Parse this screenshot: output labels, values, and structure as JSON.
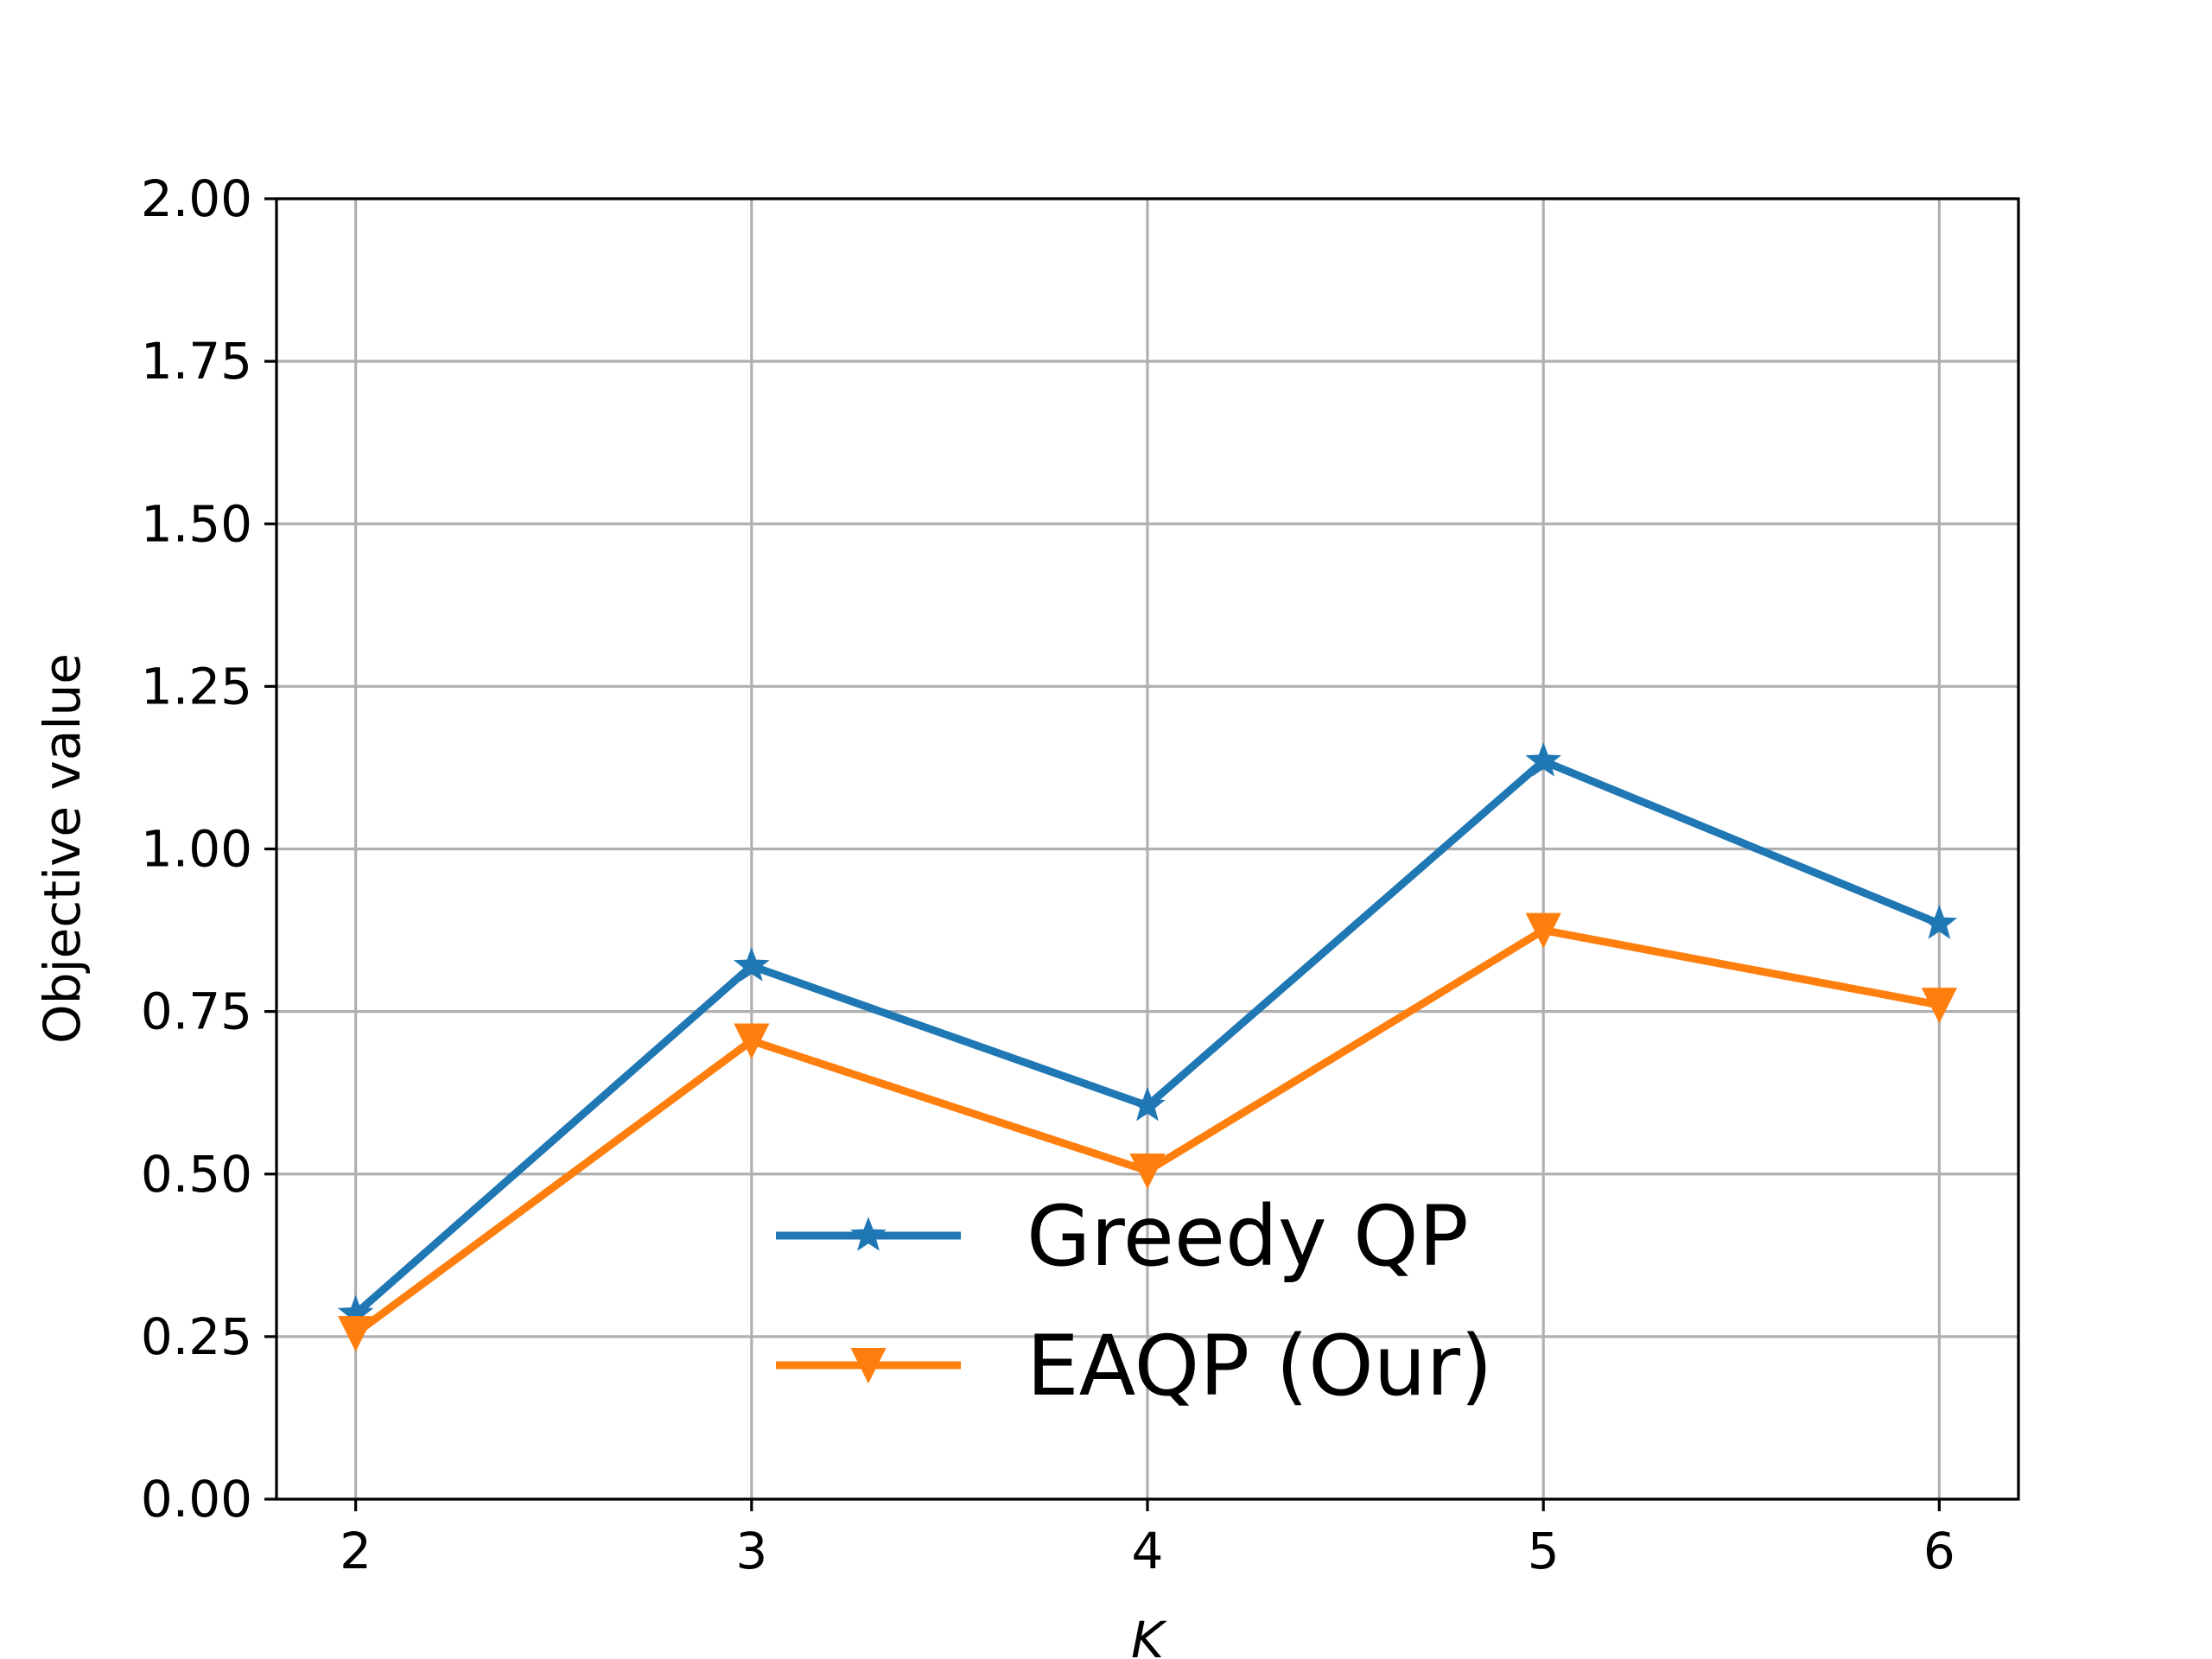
{
  "chart_data": {
    "type": "line",
    "title": "",
    "xlabel": "K",
    "ylabel": "Objective value",
    "x": [
      2,
      3,
      4,
      5,
      6
    ],
    "x_tick_labels": [
      "2",
      "3",
      "4",
      "5",
      "6"
    ],
    "xlim": [
      1.8,
      6.2
    ],
    "ylim": [
      0.0,
      2.0
    ],
    "y_ticks": [
      0.0,
      0.25,
      0.5,
      0.75,
      1.0,
      1.25,
      1.5,
      1.75,
      2.0
    ],
    "y_tick_labels": [
      "0.00",
      "0.25",
      "0.50",
      "0.75",
      "1.00",
      "1.25",
      "1.50",
      "1.75",
      "2.00"
    ],
    "grid": true,
    "legend_position": "lower-center",
    "series": [
      {
        "name": "Greedy QP",
        "values": [
          0.285,
          0.82,
          0.605,
          1.135,
          0.885
        ],
        "color": "#1f77b4",
        "marker": "star"
      },
      {
        "name": "EAQP (Our)",
        "values": [
          0.255,
          0.705,
          0.505,
          0.875,
          0.76
        ],
        "color": "#ff7f0e",
        "marker": "triangle-down"
      }
    ]
  }
}
